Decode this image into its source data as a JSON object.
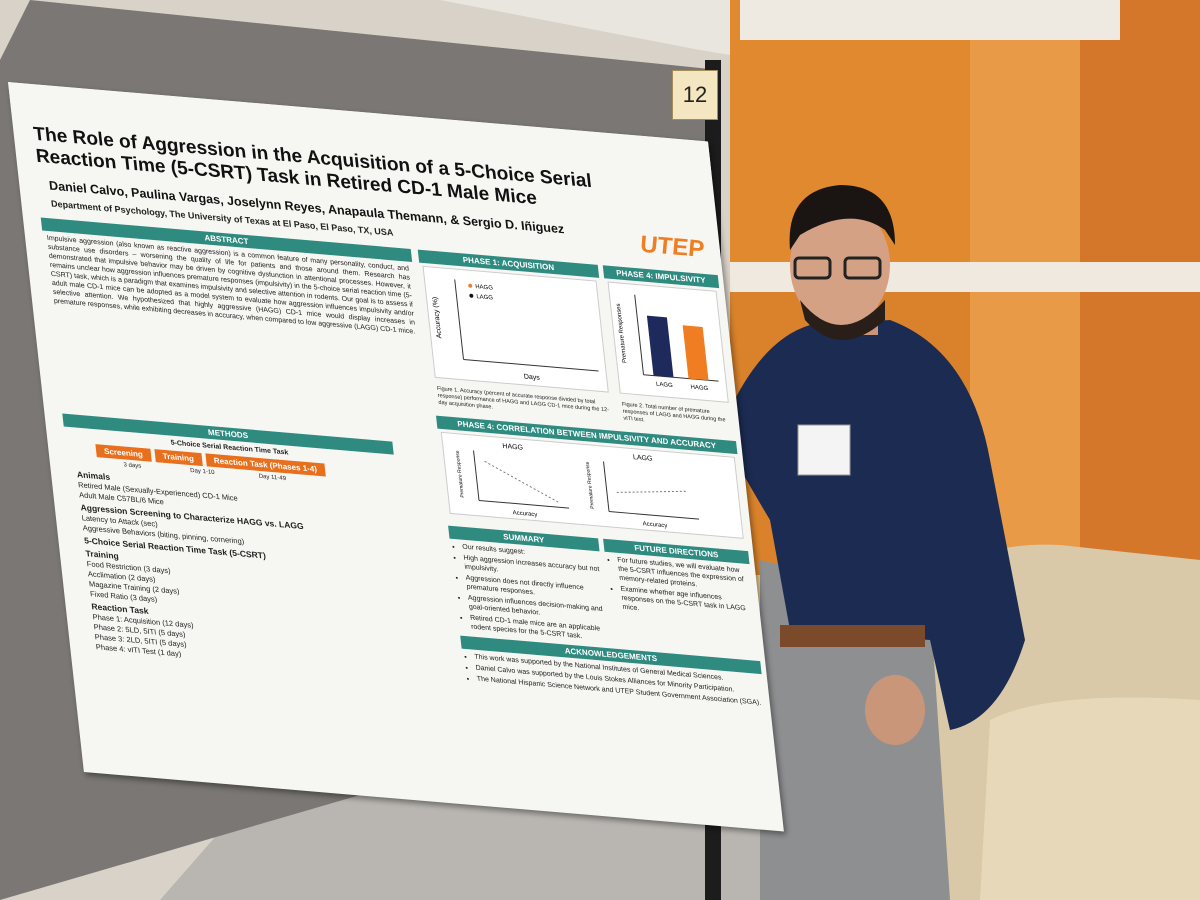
{
  "board_number": "12",
  "poster": {
    "title": "The Role of Aggression in the Acquisition of a 5-Choice Serial Reaction Time (5-CSRT) Task in Retired CD-1 Male Mice",
    "authors": "Daniel Calvo, Paulina Vargas, Joselynn Reyes, Anapaula Themann, & Sergio D. Iñiguez",
    "affiliation": "Department of Psychology, The University of Texas at El Paso, El Paso, TX, USA",
    "logo": "UTEP",
    "abstract": {
      "heading": "ABSTRACT",
      "body": "Impulsive aggression (also known as reactive aggression) is a common feature of many personality, conduct, and substance use disorders – worsening the quality of life for patients and those around them. Research has demonstrated that impulsive behavior may be driven by cognitive dysfunction in attentional processes. However, it remains unclear how aggression influences premature responses (impulsivity) in the 5-choice serial reaction time (5-CSRT) task, which is a paradigm that examines impulsivity and selective attention in rodents. Our goal is to assess if adult male CD-1 mice can be adopted as a model system to evaluate how aggression influences impulsivity and/or selective attention. We hypothesized that highly aggressive (HAGG) CD-1 mice would display increases in premature responses, while exhibiting decreases in accuracy, when compared to low aggressive (LAGG) CD-1 mice."
    },
    "methods": {
      "heading": "METHODS",
      "timeline_title": "5-Choice Serial Reaction Time Task",
      "stages": [
        "Screening",
        "Training",
        "Reaction Task (Phases 1-4)"
      ],
      "durations": [
        "3 days",
        "Day 1-10",
        "Day 11-49"
      ],
      "items": [
        "Animals",
        "Retired Male (Sexually-Experienced) CD-1 Mice",
        "Adult Male C57BL/6 Mice",
        "Aggression Screening to Characterize HAGG vs. LAGG",
        "Latency to Attack (sec)",
        "Aggressive Behaviors (biting, pinning, cornering)",
        "5-Choice Serial Reaction Time Task (5-CSRT)",
        "Training",
        "Food Restriction (3 days)",
        "Acclimation (2 days)",
        "Magazine Training (2 days)",
        "Fixed Ratio (3 days)",
        "Reaction Task",
        "Phase 1: Acquisition (12 days)",
        "Phase 2: 5LD, 5ITI (5 days)",
        "Phase 3: 2LD, 5ITI (5 days)",
        "Phase 4: vITI Test (1 day)"
      ]
    },
    "phase1": {
      "heading": "PHASE 1: ACQUISITION",
      "legend": [
        "HAGG",
        "LAGG"
      ],
      "ylabel": "Accuracy (%)",
      "xlabel": "Days",
      "caption": "Figure 1. Accuracy (percent of accurate response divided by total response) performance of HAGG and LAGG CD-1 mice during the 12-day acquisition phase."
    },
    "phase4": {
      "heading": "PHASE 4: IMPULSIVITY",
      "ylabel": "Premature Responses",
      "categories": [
        "LAGG",
        "HAGG"
      ],
      "values": [
        18,
        16
      ],
      "colors": [
        "#1f2a5c",
        "#f07d22"
      ],
      "caption": "Figure 2. Total number of premature responses of LAGG and HAGG during the vITI test."
    },
    "correlation": {
      "heading": "PHASE 4: CORRELATION BETWEEN IMPULSIVITY AND ACCURACY",
      "panels": [
        "HAGG",
        "LAGG"
      ],
      "xlabel": "Accuracy",
      "ylabel": "Premature Response"
    },
    "summary": {
      "heading": "SUMMARY",
      "bullets": [
        "Our results suggest:",
        "High aggression increases accuracy but not impulsivity.",
        "Aggression does not directly influence premature responses.",
        "Aggression influences decision-making and goal-oriented behavior.",
        "Retired CD-1 male mice are an applicable rodent species for the 5-CSRT task."
      ]
    },
    "future": {
      "heading": "FUTURE DIRECTIONS",
      "bullets": [
        "For future studies, we will evaluate how the 5-CSRT influences the expression of memory-related proteins.",
        "Examine whether age influences responses on the 5-CSRT task in LAGG mice."
      ]
    },
    "acknowledgements": {
      "heading": "ACKNOWLEDGEMENTS",
      "bullets": [
        "This work was supported by the National Institutes of General Medical Sciences.",
        "Daniel Calvo was supported by the Louis Stokes Alliances for Minority Participation.",
        "The National Hispanic Science Network and UTEP Student Government Association (SGA)."
      ]
    }
  }
}
